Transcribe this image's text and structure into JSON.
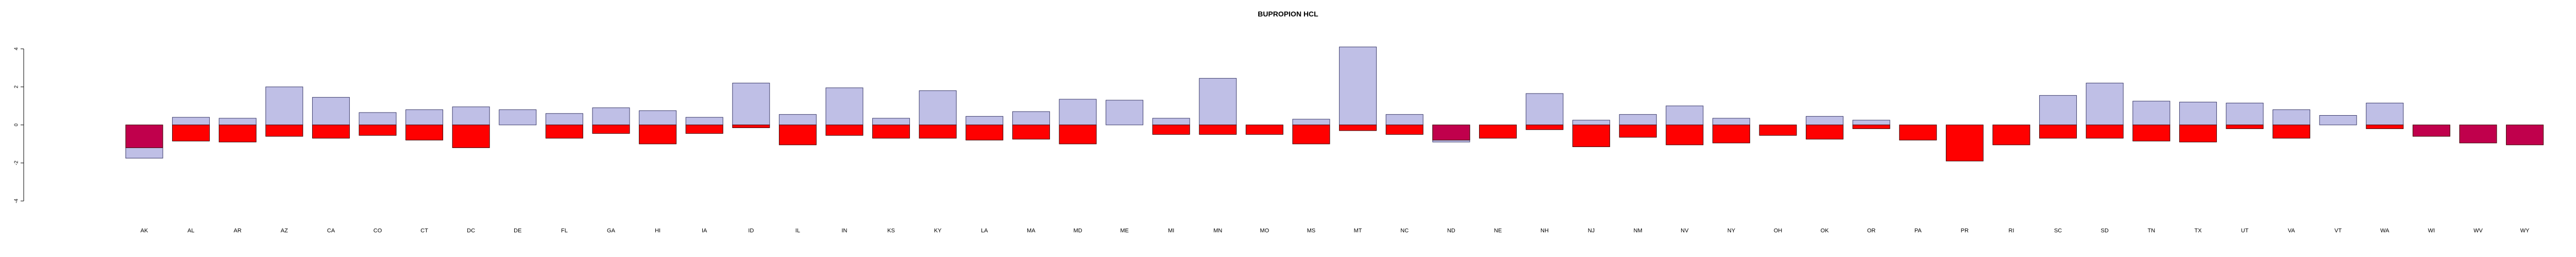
{
  "chart_data": {
    "type": "bar",
    "title": "BUPROPION HCL",
    "xlabel": "",
    "ylabel": "",
    "ylim": [
      -4,
      4
    ],
    "yticks": [
      -4,
      -2,
      0,
      2,
      4
    ],
    "grid": false,
    "legend": "none",
    "categories": [
      "AK",
      "AL",
      "AR",
      "AZ",
      "CA",
      "CO",
      "CT",
      "DC",
      "DE",
      "FL",
      "GA",
      "HI",
      "IA",
      "ID",
      "IL",
      "IN",
      "KS",
      "KY",
      "LA",
      "MA",
      "MD",
      "ME",
      "MI",
      "MN",
      "MO",
      "MS",
      "MT",
      "NC",
      "ND",
      "NE",
      "NH",
      "NJ",
      "NM",
      "NV",
      "NY",
      "OH",
      "OK",
      "OR",
      "PA",
      "PR",
      "RI",
      "SC",
      "SD",
      "TN",
      "TX",
      "UT",
      "VA",
      "VT",
      "WA",
      "WI",
      "WV",
      "WY"
    ],
    "series": [
      {
        "color": "#bfbfe6",
        "values": [
          -1.75,
          0.4,
          0.35,
          2.0,
          1.45,
          0.65,
          0.8,
          0.95,
          0.8,
          0.6,
          0.9,
          0.75,
          0.4,
          2.2,
          0.55,
          1.95,
          0.35,
          1.8,
          0.45,
          0.7,
          1.35,
          1.3,
          0.35,
          2.45,
          0.0,
          0.3,
          4.1,
          0.55,
          -0.9,
          0.0,
          1.65,
          0.25,
          0.55,
          1.0,
          0.35,
          0.0,
          0.45,
          0.25,
          0.0,
          0.0,
          0.0,
          1.55,
          2.2,
          1.25,
          1.2,
          1.15,
          0.8,
          0.5,
          1.15,
          0.0,
          0.0,
          0.0
        ]
      },
      {
        "color": "#ff0000",
        "values": [
          -1.2,
          -0.85,
          -0.9,
          -0.6,
          -0.7,
          -0.55,
          -0.8,
          -1.2,
          0.0,
          -0.7,
          -0.45,
          -1.0,
          -0.45,
          -0.15,
          -1.05,
          -0.55,
          -0.7,
          -0.7,
          -0.8,
          -0.75,
          -1.0,
          0.0,
          -0.5,
          -0.5,
          -0.5,
          -1.0,
          -0.3,
          -0.5,
          -0.8,
          -0.7,
          -0.25,
          -1.15,
          -0.65,
          -1.05,
          -0.95,
          -0.55,
          -0.75,
          -0.2,
          -0.8,
          -1.9,
          -1.05,
          -0.7,
          -0.7,
          -0.85,
          -0.9,
          -0.2,
          -0.7,
          0.0,
          -0.2,
          -0.6,
          -0.95,
          -1.05
        ]
      }
    ],
    "overlap_color": "#c0004c",
    "overlap_categories": [
      "AK",
      "ND",
      "WI",
      "WV",
      "WY"
    ]
  }
}
